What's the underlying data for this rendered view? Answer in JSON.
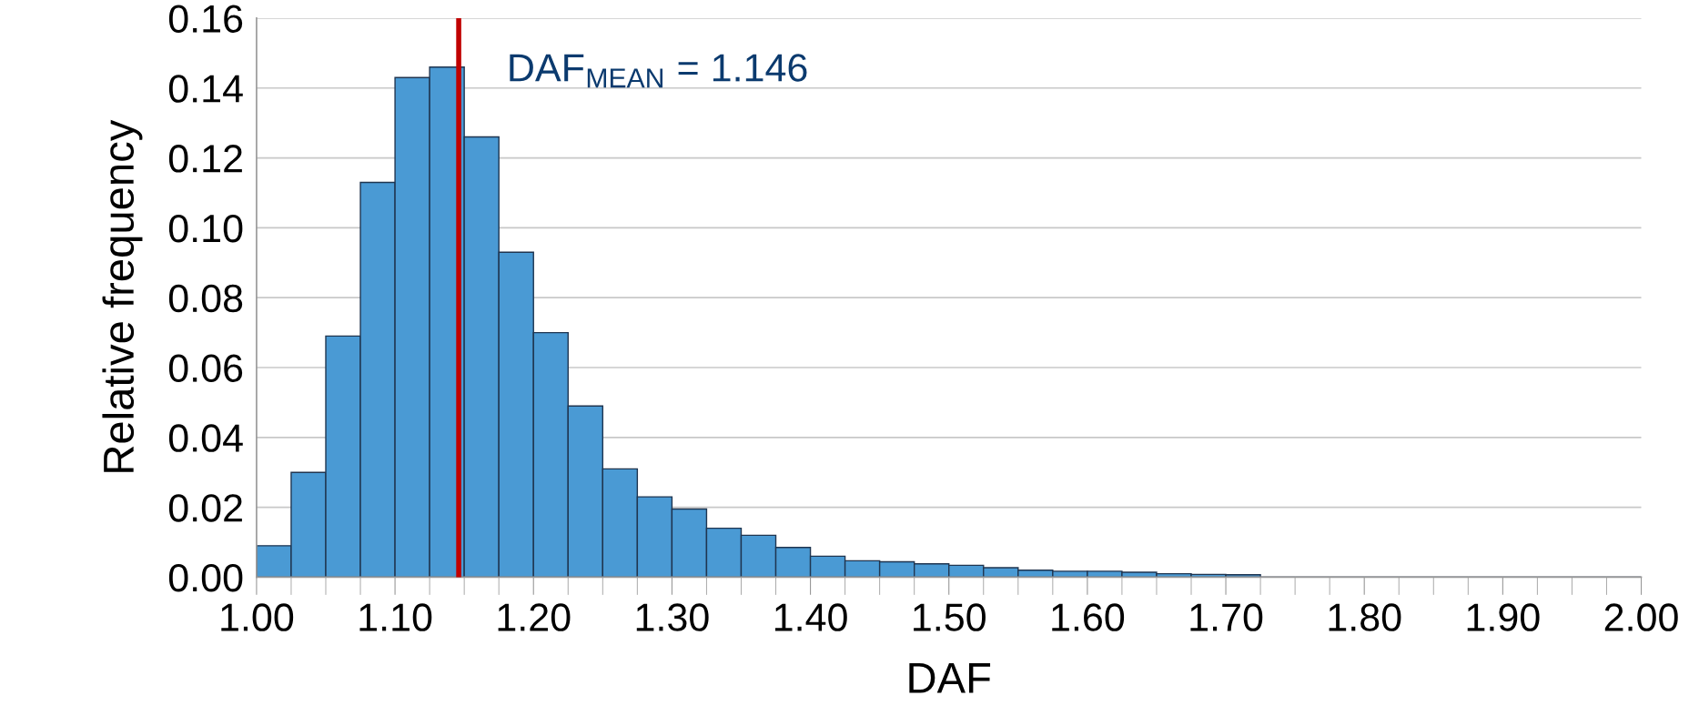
{
  "chart_data": {
    "type": "histogram",
    "xlabel": "DAF",
    "ylabel": "Relative frequency",
    "bins": [
      1.0,
      1.025,
      1.05,
      1.075,
      1.1,
      1.125,
      1.15,
      1.175,
      1.2,
      1.225,
      1.25,
      1.275,
      1.3,
      1.325,
      1.35,
      1.375,
      1.4,
      1.425,
      1.45,
      1.475,
      1.5,
      1.525,
      1.55,
      1.575,
      1.6,
      1.625,
      1.65,
      1.675,
      1.7,
      1.725,
      1.75,
      1.775,
      1.8,
      1.825,
      1.85,
      1.875,
      1.9,
      1.925,
      1.95,
      1.975,
      2.0
    ],
    "values": [
      0.009,
      0.03,
      0.069,
      0.113,
      0.143,
      0.146,
      0.126,
      0.093,
      0.07,
      0.049,
      0.031,
      0.023,
      0.0195,
      0.014,
      0.012,
      0.0085,
      0.006,
      0.0047,
      0.0044,
      0.0038,
      0.0034,
      0.0027,
      0.002,
      0.0017,
      0.0017,
      0.0014,
      0.001,
      0.0008,
      0.0007,
      0,
      0,
      0,
      0,
      0,
      0,
      0,
      0,
      0,
      0,
      0
    ],
    "color": "#4a9ad4",
    "xlim": [
      1.0,
      2.0
    ],
    "xticks": [
      {
        "value": 1.0,
        "label": "1.00"
      },
      {
        "value": 1.1,
        "label": "1.10"
      },
      {
        "value": 1.2,
        "label": "1.20"
      },
      {
        "value": 1.3,
        "label": "1.30"
      },
      {
        "value": 1.4,
        "label": "1.40"
      },
      {
        "value": 1.5,
        "label": "1.50"
      },
      {
        "value": 1.6,
        "label": "1.60"
      },
      {
        "value": 1.7,
        "label": "1.70"
      },
      {
        "value": 1.8,
        "label": "1.80"
      },
      {
        "value": 1.9,
        "label": "1.90"
      },
      {
        "value": 2.0,
        "label": "2.00"
      }
    ],
    "ylim": [
      0,
      0.16
    ],
    "yticks": [
      {
        "value": 0,
        "label": "0.00"
      },
      {
        "value": 0.02,
        "label": "0.02"
      },
      {
        "value": 0.04,
        "label": "0.04"
      },
      {
        "value": 0.06,
        "label": "0.06"
      },
      {
        "value": 0.08,
        "label": "0.08"
      },
      {
        "value": 0.1,
        "label": "0.10"
      },
      {
        "value": 0.12,
        "label": "0.12"
      },
      {
        "value": 0.14,
        "label": "0.14"
      },
      {
        "value": 0.16,
        "label": "0.16"
      }
    ],
    "grid": "y",
    "ref_lines": [
      {
        "axis": "x",
        "value": 1.146,
        "label": "DAF$_{MEAN}$ = 1.146",
        "color": "#c00000",
        "line_style": "solid"
      }
    ]
  }
}
